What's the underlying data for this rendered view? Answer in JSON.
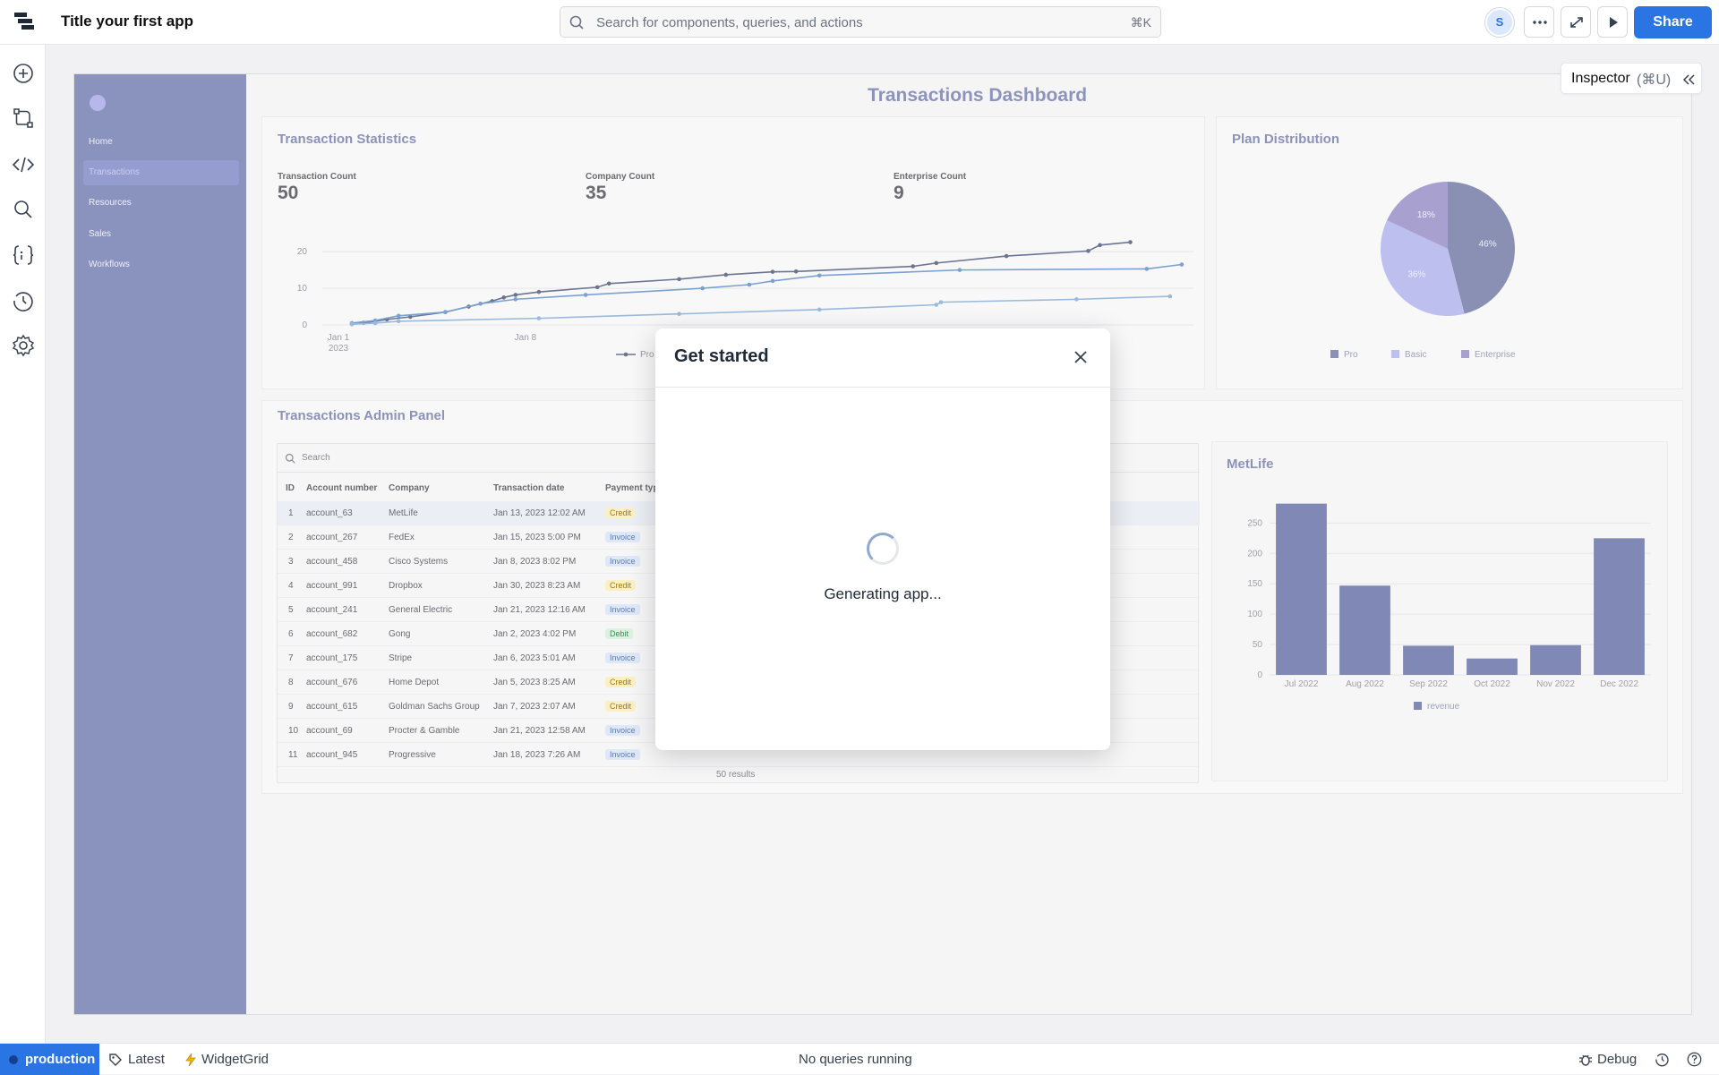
{
  "topbar": {
    "app_title": "Title your first app",
    "search_placeholder": "Search for components, queries, and actions",
    "search_shortcut": "⌘K",
    "avatar_initial": "S",
    "share_label": "Share"
  },
  "left_rail": {
    "icons": [
      "add-component-icon",
      "graph-icon",
      "code-icon",
      "search-icon",
      "state-icon",
      "history-icon",
      "settings-icon"
    ],
    "assist_icon": "sparkle-icon"
  },
  "canvas": {
    "nav": {
      "items": [
        {
          "label": "Home",
          "active": false
        },
        {
          "label": "Transactions",
          "active": true
        },
        {
          "label": "Resources",
          "active": false
        },
        {
          "label": "Sales",
          "active": false
        },
        {
          "label": "Workflows",
          "active": false
        }
      ]
    },
    "page_title": "Transactions Dashboard",
    "stats_card": {
      "title": "Transaction Statistics",
      "stats": [
        {
          "label": "Transaction Count",
          "value": "50"
        },
        {
          "label": "Company Count",
          "value": "35"
        },
        {
          "label": "Enterprise Count",
          "value": "9"
        }
      ],
      "legend_partial": "Pro"
    },
    "plan_card": {
      "title": "Plan Distribution",
      "legend": [
        "Pro",
        "Basic",
        "Enterprise"
      ]
    },
    "admin_panel": {
      "title": "Transactions Admin Panel",
      "search_placeholder": "Search",
      "columns": [
        "ID",
        "Account number",
        "Company",
        "Transaction date",
        "Payment typ"
      ],
      "rows": [
        {
          "id": "1",
          "account": "account_63",
          "company": "MetLife",
          "date": "Jan 13, 2023 12:02 AM",
          "payment": "Credit"
        },
        {
          "id": "2",
          "account": "account_267",
          "company": "FedEx",
          "date": "Jan 15, 2023 5:00 PM",
          "payment": "Invoice"
        },
        {
          "id": "3",
          "account": "account_458",
          "company": "Cisco Systems",
          "date": "Jan 8, 2023 8:02 PM",
          "payment": "Invoice"
        },
        {
          "id": "4",
          "account": "account_991",
          "company": "Dropbox",
          "date": "Jan 30, 2023 8:23 AM",
          "payment": "Credit"
        },
        {
          "id": "5",
          "account": "account_241",
          "company": "General Electric",
          "date": "Jan 21, 2023 12:16 AM",
          "payment": "Invoice"
        },
        {
          "id": "6",
          "account": "account_682",
          "company": "Gong",
          "date": "Jan 2, 2023 4:02 PM",
          "payment": "Debit"
        },
        {
          "id": "7",
          "account": "account_175",
          "company": "Stripe",
          "date": "Jan 6, 2023 5:01 AM",
          "payment": "Invoice"
        },
        {
          "id": "8",
          "account": "account_676",
          "company": "Home Depot",
          "date": "Jan 5, 2023 8:25 AM",
          "payment": "Credit"
        },
        {
          "id": "9",
          "account": "account_615",
          "company": "Goldman Sachs Group",
          "date": "Jan 7, 2023 2:07 AM",
          "payment": "Credit"
        },
        {
          "id": "10",
          "account": "account_69",
          "company": "Procter & Gamble",
          "date": "Jan 21, 2023 12:58 AM",
          "payment": "Invoice"
        },
        {
          "id": "11",
          "account": "account_945",
          "company": "Progressive",
          "date": "Jan 18, 2023 7:26 AM",
          "payment": "Invoice"
        }
      ],
      "footer": "50 results"
    },
    "metlife_card": {
      "title": "MetLife"
    }
  },
  "chart_data": [
    {
      "type": "line",
      "title": "",
      "x_ticks": [
        "Jan 1\n2023",
        "Jan 8"
      ],
      "y_ticks": [
        "0",
        "10",
        "20"
      ],
      "ylim": [
        0,
        22
      ],
      "series": [
        {
          "name": "Pro",
          "color": "#6b7591",
          "points": [
            [
              0,
              0.2
            ],
            [
              0.5,
              0.6
            ],
            [
              1,
              1
            ],
            [
              1.5,
              1.5
            ],
            [
              2.5,
              2.2
            ],
            [
              4,
              3.5
            ],
            [
              5,
              5
            ],
            [
              6,
              6.5
            ],
            [
              6.5,
              7.5
            ],
            [
              7,
              8.2
            ],
            [
              8,
              9
            ],
            [
              10.5,
              10.3
            ],
            [
              11,
              11.3
            ],
            [
              14,
              12.5
            ],
            [
              16,
              13.7
            ],
            [
              18,
              14.5
            ],
            [
              19,
              14.6
            ],
            [
              24,
              16
            ],
            [
              25,
              16.9
            ],
            [
              28,
              18.8
            ],
            [
              31.5,
              20.2
            ],
            [
              32,
              21.8
            ],
            [
              33.3,
              22.6
            ]
          ]
        },
        {
          "name": "Basic",
          "color": "#7aa1d1",
          "points": [
            [
              0,
              0.5
            ],
            [
              1,
              1.2
            ],
            [
              2,
              2.5
            ],
            [
              4,
              3.5
            ],
            [
              5.5,
              5.8
            ],
            [
              7,
              7
            ],
            [
              10,
              8.2
            ],
            [
              15,
              10
            ],
            [
              17,
              11
            ],
            [
              18,
              12
            ],
            [
              20,
              13.5
            ],
            [
              26,
              15
            ],
            [
              34,
              15.3
            ],
            [
              35.5,
              16.5
            ]
          ]
        },
        {
          "name": "Enterprise",
          "color": "#9ab9dc",
          "points": [
            [
              0,
              0.2
            ],
            [
              1,
              0.5
            ],
            [
              2,
              1
            ],
            [
              8,
              1.8
            ],
            [
              14,
              3
            ],
            [
              20,
              4.2
            ],
            [
              25,
              5.5
            ],
            [
              25.2,
              6.2
            ],
            [
              31,
              7
            ],
            [
              35,
              7.8
            ]
          ]
        }
      ]
    },
    {
      "type": "pie",
      "title": "",
      "labels": [
        "Pro",
        "Basic",
        "Enterprise"
      ],
      "values": [
        46,
        36,
        18
      ],
      "colors": [
        "#8a90b4",
        "#bdc0ee",
        "#a8a1cf"
      ]
    },
    {
      "type": "bar",
      "title": "MetLife",
      "categories": [
        "Jul 2022",
        "Aug 2022",
        "Sep 2022",
        "Oct 2022",
        "Nov 2022",
        "Dec 2022"
      ],
      "series": [
        {
          "name": "revenue",
          "values": [
            282,
            147,
            48,
            27,
            49,
            225
          ]
        }
      ],
      "y_ticks": [
        "0",
        "50",
        "100",
        "150",
        "200",
        "250"
      ],
      "ylim": [
        0,
        280
      ],
      "color": "#8089b6"
    }
  ],
  "inspector": {
    "label": "Inspector",
    "shortcut": "(⌘U)"
  },
  "modal": {
    "title": "Get started",
    "message": "Generating app..."
  },
  "statusbar": {
    "environment": "production",
    "version_label": "Latest",
    "widget_label": "WidgetGrid",
    "query_status": "No queries running",
    "debug_label": "Debug"
  },
  "colors": {
    "accent": "#2b74e4",
    "nav_bg": "#8a92be"
  }
}
